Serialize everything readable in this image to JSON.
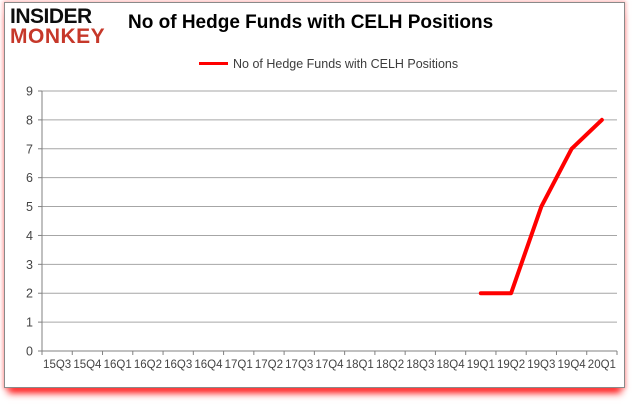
{
  "header": {
    "logo_line1": "INSIDER",
    "logo_line2": "MONKEY"
  },
  "colors": {
    "series": "#ff0000",
    "logo_red": "#c6382a",
    "gridline": "#a6a6a6",
    "axis": "#808080",
    "tick_text": "#454545",
    "title_text": "#000000"
  },
  "chart_data": {
    "type": "line",
    "title": "No of Hedge Funds with CELH Positions",
    "xlabel": "",
    "ylabel": "",
    "categories": [
      "15Q3",
      "15Q4",
      "16Q1",
      "16Q2",
      "16Q3",
      "16Q4",
      "17Q1",
      "17Q2",
      "17Q3",
      "17Q4",
      "18Q1",
      "18Q2",
      "18Q3",
      "18Q4",
      "19Q1",
      "19Q2",
      "19Q3",
      "19Q4",
      "20Q1"
    ],
    "series": [
      {
        "name": "No of Hedge Funds with CELH Positions",
        "values": [
          null,
          null,
          null,
          null,
          null,
          null,
          null,
          null,
          null,
          null,
          null,
          null,
          null,
          null,
          2,
          2,
          5,
          7,
          8
        ]
      }
    ],
    "ylim": [
      0,
      9
    ],
    "ytick_step": 1,
    "grid": true,
    "legend_position": "top-center"
  }
}
